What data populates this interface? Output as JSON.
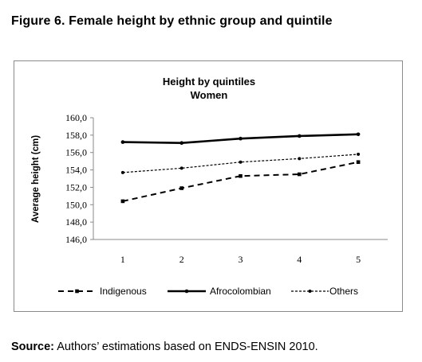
{
  "figure": {
    "title": "Figure 6.  Female height by ethnic group and quintile"
  },
  "source": {
    "label": "Source:",
    "text": " Authors’ estimations based on ENDS-ENSIN 2010."
  },
  "chart_data": {
    "type": "line",
    "title": "Height by quintiles",
    "subtitle": "Women",
    "xlabel": "",
    "ylabel": "Average height (cm)",
    "categories": [
      "1",
      "2",
      "3",
      "4",
      "5"
    ],
    "ylim": [
      146.0,
      160.0
    ],
    "yticks": [
      "146,0",
      "148,0",
      "150,0",
      "152,0",
      "154,0",
      "156,0",
      "158,0",
      "160,0"
    ],
    "grid": false,
    "legend_position": "bottom",
    "series": [
      {
        "name": "Indigenous",
        "values": [
          150.4,
          151.9,
          153.3,
          153.5,
          154.9
        ],
        "style": "dashed",
        "marker": "square",
        "color": "#000000"
      },
      {
        "name": "Afrocolombian",
        "values": [
          157.2,
          157.1,
          157.6,
          157.9,
          158.1
        ],
        "style": "solid",
        "marker": "circle",
        "color": "#000000"
      },
      {
        "name": "Others",
        "values": [
          153.7,
          154.2,
          154.9,
          155.3,
          155.8
        ],
        "style": "dotted",
        "marker": "circle",
        "color": "#000000"
      }
    ]
  }
}
